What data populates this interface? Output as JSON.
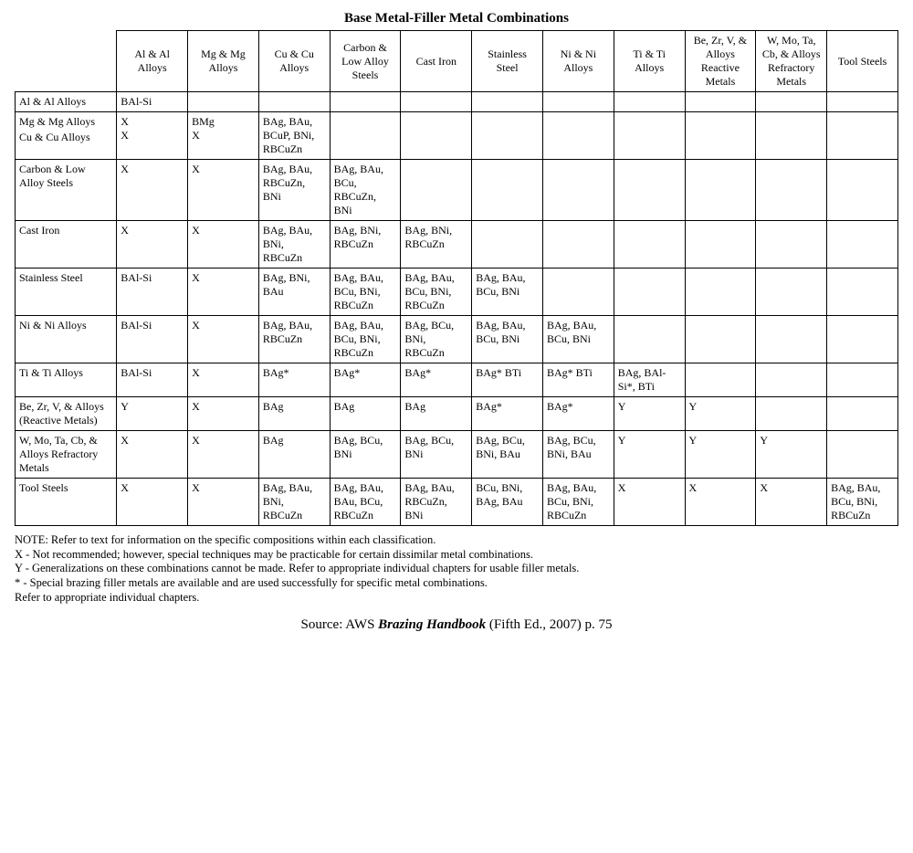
{
  "title": "Base Metal-Filler Metal Combinations",
  "columns": [
    "Al & Al Alloys",
    "Mg & Mg Alloys",
    "Cu & Cu Alloys",
    "Carbon & Low Alloy Steels",
    "Cast Iron",
    "Stainless Steel",
    "Ni & Ni Alloys",
    "Ti & Ti Alloys",
    "Be, Zr, V, & Alloys Reactive Metals",
    "W, Mo, Ta, Cb, & Alloys Refractory Metals",
    "Tool Steels"
  ],
  "rows": [
    {
      "label": "Al & Al Alloys",
      "cells": [
        "BAl-Si",
        "",
        "",
        "",
        "",
        "",
        "",
        "",
        "",
        "",
        ""
      ]
    },
    {
      "label_a": "Mg & Mg Alloys",
      "label_b": "Cu & Cu Alloys",
      "cells_a": [
        "X",
        "BMg",
        "",
        "",
        "",
        "",
        "",
        "",
        "",
        "",
        ""
      ],
      "cells_b": [
        "X",
        "X",
        "BAg, BAu, BCuP, BNi, RBCuZn",
        "",
        "",
        "",
        "",
        "",
        "",
        "",
        ""
      ]
    },
    {
      "label": "Carbon & Low Alloy Steels",
      "cells": [
        "X",
        "X",
        "BAg, BAu, RBCuZn, BNi",
        "BAg, BAu, BCu, RBCuZn, BNi",
        "",
        "",
        "",
        "",
        "",
        "",
        ""
      ]
    },
    {
      "label": "Cast Iron",
      "cells": [
        "X",
        "X",
        "BAg, BAu, BNi, RBCuZn",
        "BAg, BNi, RBCuZn",
        "BAg, BNi, RBCuZn",
        "",
        "",
        "",
        "",
        "",
        ""
      ]
    },
    {
      "label": "Stainless Steel",
      "cells": [
        "BAl-Si",
        "X",
        "BAg, BNi, BAu",
        "BAg, BAu, BCu, BNi, RBCuZn",
        "BAg, BAu, BCu, BNi, RBCuZn",
        "BAg, BAu, BCu, BNi",
        "",
        "",
        "",
        "",
        ""
      ]
    },
    {
      "label": "Ni & Ni Alloys",
      "cells": [
        "BAl-Si",
        "X",
        "BAg, BAu, RBCuZn",
        "BAg, BAu, BCu, BNi, RBCuZn",
        "BAg, BCu, BNi, RBCuZn",
        "BAg, BAu, BCu, BNi",
        "BAg, BAu, BCu, BNi",
        "",
        "",
        "",
        ""
      ]
    },
    {
      "label": "Ti & Ti Alloys",
      "cells": [
        "BAl-Si",
        "X",
        "BAg*",
        "BAg*",
        "BAg*",
        "BAg* BTi",
        "BAg* BTi",
        "BAg, BAl-Si*, BTi",
        "",
        "",
        ""
      ]
    },
    {
      "label": "Be, Zr, V, & Alloys (Reactive Metals)",
      "cells": [
        "Y",
        "X",
        "BAg",
        "BAg",
        "BAg",
        "BAg*",
        "BAg*",
        "Y",
        "Y",
        "",
        ""
      ]
    },
    {
      "label": "W, Mo, Ta, Cb, & Alloys Refractory Metals",
      "cells": [
        "X",
        "X",
        "BAg",
        "BAg, BCu, BNi",
        "BAg, BCu, BNi",
        "BAg, BCu, BNi, BAu",
        "BAg, BCu, BNi, BAu",
        "Y",
        "Y",
        "Y",
        ""
      ]
    },
    {
      "label": "Tool Steels",
      "cells": [
        "X",
        "X",
        "BAg, BAu, BNi, RBCuZn",
        "BAg, BAu, BAu, BCu, RBCuZn",
        "BAg, BAu, RBCuZn, BNi",
        "BCu, BNi, BAg, BAu",
        "BAg, BAu, BCu, BNi, RBCuZn",
        "X",
        "X",
        "X",
        "BAg, BAu, BCu, BNi, RBCuZn"
      ]
    }
  ],
  "notes": {
    "line1": "NOTE: Refer to text for information on the specific compositions within each classification.",
    "line2": "X - Not recommended; however, special techniques may be practicable for certain dissimilar metal combinations.",
    "line3": "Y - Generalizations on these combinations cannot be made. Refer to appropriate individual chapters for usable filler metals.",
    "line4": "* - Special brazing filler metals are available and are used successfully for specific metal combinations.",
    "line5": "Refer to appropriate individual chapters."
  },
  "source": {
    "prefix": "Source:  AWS ",
    "book": "Brazing Handbook",
    "suffix": " (Fifth Ed., 2007)  p. 75"
  },
  "style": {
    "font_family": "Times New Roman",
    "title_fontsize_pt": 15,
    "cell_fontsize_pt": 12,
    "notes_fontsize_pt": 12.5,
    "source_fontsize_pt": 15,
    "border_color": "#000000",
    "background_color": "#ffffff",
    "text_color": "#000000",
    "row_label_col_width_pct": 11.5,
    "data_col_width_pct": 8.04
  }
}
